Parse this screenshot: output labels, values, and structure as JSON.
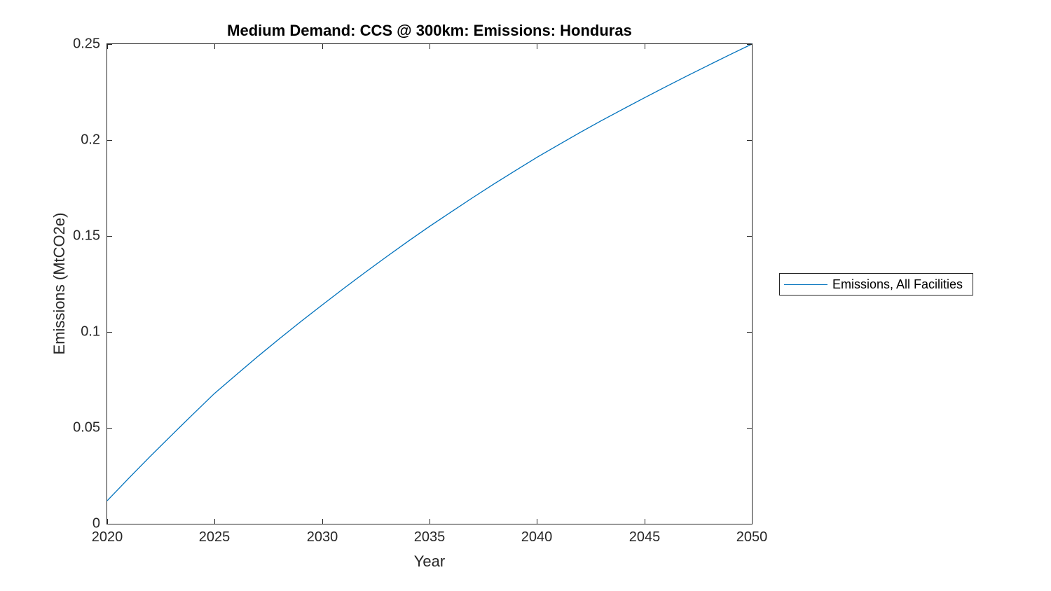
{
  "chart_data": {
    "type": "line",
    "title": "Medium Demand: CCS @ 300km: Emissions: Honduras",
    "xlabel": "Year",
    "ylabel": "Emissions (MtCO2e)",
    "xlim": [
      2020,
      2050
    ],
    "ylim": [
      0,
      0.25
    ],
    "x_ticks": [
      2020,
      2025,
      2030,
      2035,
      2040,
      2045,
      2050
    ],
    "x_tick_labels": [
      "2020",
      "2025",
      "2030",
      "2035",
      "2040",
      "2045",
      "2050"
    ],
    "y_ticks": [
      0,
      0.05,
      0.1,
      0.15,
      0.2,
      0.25
    ],
    "y_tick_labels": [
      "0",
      "0.05",
      "0.1",
      "0.15",
      "0.2",
      "0.25"
    ],
    "grid": false,
    "box": true,
    "legend_position": "outside-right",
    "line_color": "#0072BD",
    "axis_color": "#262626",
    "series": [
      {
        "name": "Emissions, All Facilities",
        "x": [
          2020,
          2021,
          2022,
          2023,
          2024,
          2025,
          2026,
          2027,
          2028,
          2029,
          2030,
          2031,
          2032,
          2033,
          2034,
          2035,
          2036,
          2037,
          2038,
          2039,
          2040,
          2041,
          2042,
          2043,
          2044,
          2045,
          2046,
          2047,
          2048,
          2049,
          2050
        ],
        "values": [
          0.012,
          0.0237,
          0.0351,
          0.0462,
          0.0572,
          0.068,
          0.0776,
          0.0871,
          0.0963,
          0.1053,
          0.114,
          0.1226,
          0.131,
          0.1392,
          0.1472,
          0.155,
          0.1625,
          0.1699,
          0.1771,
          0.1841,
          0.191,
          0.1975,
          0.2039,
          0.2101,
          0.2161,
          0.222,
          0.2278,
          0.2335,
          0.2391,
          0.2446,
          0.25
        ]
      }
    ]
  }
}
